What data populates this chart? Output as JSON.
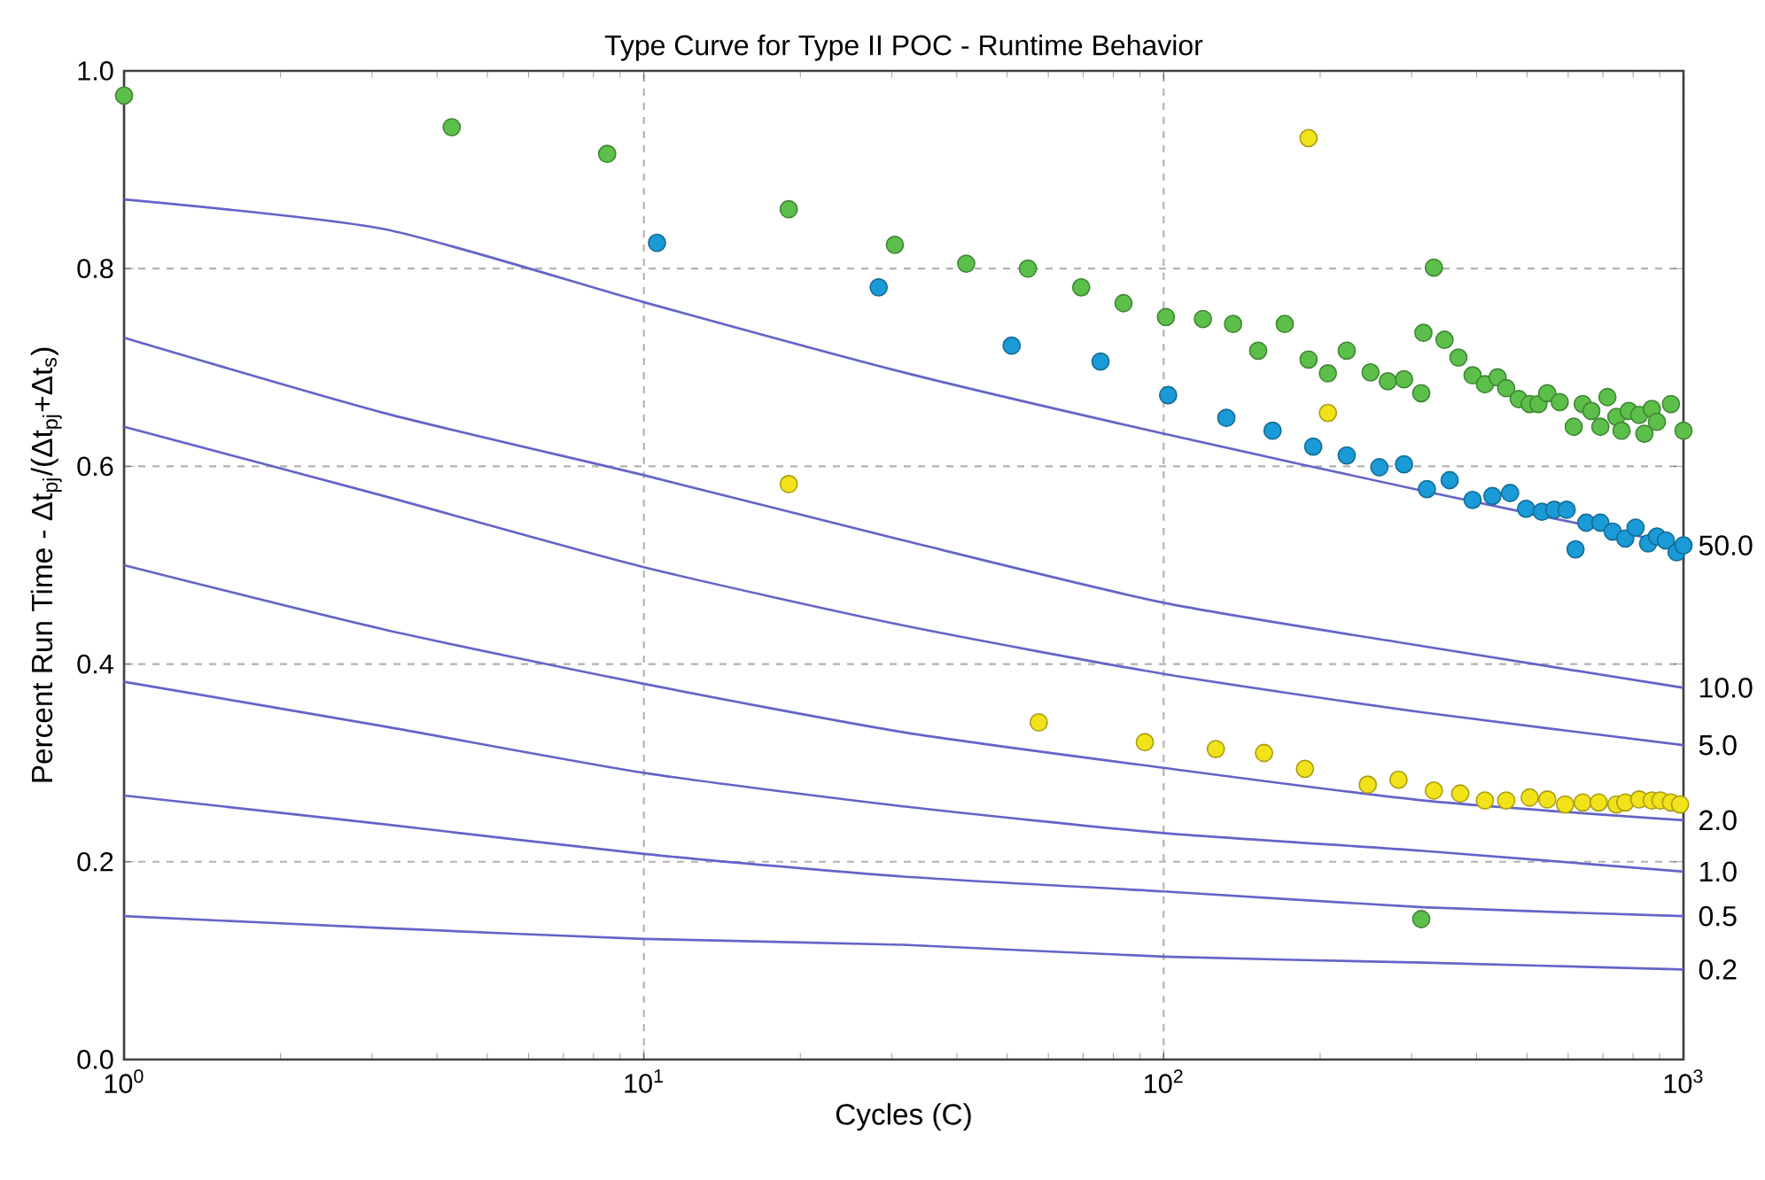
{
  "chart_data": {
    "type": "line",
    "title": "Type Curve for Type II POC - Runtime Behavior",
    "xlabel": "Cycles (C)",
    "ylabel": "Percent Run Time - Δt$_{pj}$/(Δt$_{pj}$+Δt$_{s}$)",
    "log": "x",
    "grid": true,
    "marker": "circle",
    "xlim": [
      1,
      1000
    ],
    "ylim": [
      0,
      1
    ],
    "xticks": [
      {
        "value": 1,
        "label": "10$^{0}$"
      },
      {
        "value": 10,
        "label": "10$^{1}$"
      },
      {
        "value": 100,
        "label": "10$^{2}$"
      },
      {
        "value": 1000,
        "label": "10$^{3}$"
      }
    ],
    "yticks": [
      {
        "value": 0,
        "label": "0.0"
      },
      {
        "value": 0.2,
        "label": "0.2"
      },
      {
        "value": 0.4,
        "label": "0.4"
      },
      {
        "value": 0.6,
        "label": "0.6"
      },
      {
        "value": 0.8,
        "label": "0.8"
      },
      {
        "value": 1,
        "label": "1.0"
      }
    ],
    "series": [
      {
        "marker": "none",
        "name": "50.0",
        "color": "#6464c8",
        "x": [
          1,
          3.16,
          10,
          31.6,
          100,
          316,
          1000
        ],
        "values": [
          0.87,
          0.84,
          0.766,
          0.695,
          0.633,
          0.575,
          0.52
        ]
      },
      {
        "marker": "none",
        "name": "10.0",
        "color": "#6464c8",
        "x": [
          1,
          3.16,
          10,
          31.6,
          100,
          316,
          1000
        ],
        "values": [
          0.73,
          0.654,
          0.591,
          0.525,
          0.462,
          0.418,
          0.376
        ]
      },
      {
        "marker": "none",
        "name": "5.0",
        "color": "#6464c8",
        "x": [
          1,
          3.16,
          10,
          31.6,
          100,
          316,
          1000
        ],
        "values": [
          0.64,
          0.57,
          0.498,
          0.439,
          0.39,
          0.351,
          0.318
        ]
      },
      {
        "marker": "none",
        "name": "2.0",
        "color": "#6464c8",
        "x": [
          1,
          3.16,
          10,
          31.6,
          100,
          316,
          1000
        ],
        "values": [
          0.5,
          0.435,
          0.38,
          0.331,
          0.295,
          0.262,
          0.242
        ]
      },
      {
        "marker": "none",
        "name": "1.0",
        "color": "#6464c8",
        "x": [
          1,
          3.16,
          10,
          31.6,
          100,
          316,
          1000
        ],
        "values": [
          0.382,
          0.337,
          0.29,
          0.256,
          0.229,
          0.211,
          0.19
        ]
      },
      {
        "marker": "none",
        "name": "0.5",
        "color": "#6464c8",
        "x": [
          1,
          3.16,
          10,
          31.6,
          100,
          316,
          1000
        ],
        "values": [
          0.267,
          0.238,
          0.208,
          0.185,
          0.17,
          0.154,
          0.145
        ]
      },
      {
        "marker": "none",
        "name": "0.2",
        "color": "#6464c8",
        "x": [
          1,
          3.16,
          10,
          31.6,
          100,
          316,
          1000
        ],
        "values": [
          0.145,
          0.133,
          0.122,
          0.116,
          0.104,
          0.098,
          0.091
        ]
      },
      {
        "type": "scatter",
        "color": "#5cbf4a",
        "x": [
          1,
          4.27,
          8.5,
          19,
          30.4,
          41.7,
          54.8,
          69.4,
          83.7,
          101,
          119,
          136,
          152,
          171,
          190,
          207,
          225,
          250,
          270,
          290,
          313,
          331,
          316,
          347,
          369,
          393,
          415,
          439,
          456,
          482,
          506,
          526,
          547,
          578,
          615,
          640,
          665,
          692,
          714,
          743,
          760,
          785,
          822,
          841,
          869,
          889,
          946,
          1000,
          313
        ],
        "values": [
          0.975,
          0.943,
          0.916,
          0.86,
          0.824,
          0.805,
          0.8,
          0.781,
          0.765,
          0.751,
          0.749,
          0.744,
          0.717,
          0.744,
          0.708,
          0.694,
          0.717,
          0.695,
          0.686,
          0.688,
          0.674,
          0.801,
          0.735,
          0.728,
          0.71,
          0.692,
          0.683,
          0.69,
          0.679,
          0.668,
          0.663,
          0.663,
          0.674,
          0.665,
          0.64,
          0.663,
          0.656,
          0.64,
          0.67,
          0.65,
          0.636,
          0.656,
          0.652,
          0.633,
          0.658,
          0.645,
          0.663,
          0.636,
          0.142
        ]
      },
      {
        "type": "scatter",
        "color": "#1a9ad6",
        "x": [
          10.6,
          28.3,
          51,
          75.6,
          102,
          132,
          162,
          194,
          225,
          260,
          290,
          321,
          355,
          393,
          429,
          464,
          498,
          534,
          564,
          596,
          620,
          650,
          692,
          731,
          773,
          809,
          855,
          889,
          925,
          970,
          1000
        ],
        "values": [
          0.826,
          0.781,
          0.722,
          0.706,
          0.672,
          0.649,
          0.636,
          0.62,
          0.611,
          0.599,
          0.602,
          0.577,
          0.586,
          0.566,
          0.57,
          0.573,
          0.557,
          0.554,
          0.556,
          0.556,
          0.516,
          0.543,
          0.543,
          0.534,
          0.527,
          0.538,
          0.522,
          0.529,
          0.525,
          0.513,
          0.52
        ]
      },
      {
        "type": "scatter",
        "color": "#f2e21a",
        "x": [
          19,
          190,
          207,
          57.5,
          92,
          126,
          156,
          187,
          247,
          283,
          331,
          372,
          415,
          456,
          506,
          547,
          592,
          640,
          687,
          743,
          773,
          822,
          869,
          903,
          946,
          985
        ],
        "values": [
          0.582,
          0.932,
          0.654,
          0.341,
          0.321,
          0.314,
          0.31,
          0.294,
          0.278,
          0.283,
          0.272,
          0.269,
          0.262,
          0.262,
          0.265,
          0.263,
          0.258,
          0.26,
          0.26,
          0.258,
          0.26,
          0.263,
          0.262,
          0.262,
          0.26,
          0.258
        ]
      }
    ]
  }
}
